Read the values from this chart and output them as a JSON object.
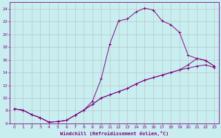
{
  "xlabel": "Windchill (Refroidissement éolien,°C)",
  "bg_color": "#c8eef0",
  "line_color": "#800080",
  "grid_color": "#b0b0b0",
  "xlim": [
    -0.5,
    23.5
  ],
  "ylim": [
    6,
    25
  ],
  "xticks": [
    0,
    1,
    2,
    3,
    4,
    5,
    6,
    7,
    8,
    9,
    10,
    11,
    12,
    13,
    14,
    15,
    16,
    17,
    18,
    19,
    20,
    21,
    22,
    23
  ],
  "yticks": [
    6,
    8,
    10,
    12,
    14,
    16,
    18,
    20,
    22,
    24
  ],
  "line1_x": [
    0,
    1,
    2,
    3,
    4,
    5,
    6,
    7,
    8,
    9,
    10,
    11,
    12,
    13,
    14,
    15,
    16,
    17,
    18,
    19,
    20,
    21,
    22,
    23
  ],
  "line1_y": [
    8.3,
    8.1,
    7.4,
    6.9,
    6.2,
    6.3,
    6.5,
    7.3,
    8.1,
    9.5,
    13.0,
    18.5,
    22.1,
    22.4,
    23.5,
    24.1,
    23.8,
    22.1,
    21.5,
    20.3,
    16.7,
    16.2,
    15.9,
    15.0
  ],
  "line2_x": [
    0,
    1,
    2,
    3,
    4,
    5,
    6,
    7,
    8,
    9,
    10,
    11,
    12,
    13,
    14,
    15,
    16,
    17,
    18,
    19,
    20,
    21,
    22,
    23
  ],
  "line2_y": [
    8.3,
    8.1,
    7.4,
    6.9,
    6.2,
    6.3,
    6.5,
    7.3,
    8.1,
    9.0,
    10.0,
    10.5,
    11.0,
    11.5,
    12.2,
    12.8,
    13.2,
    13.6,
    14.0,
    14.4,
    14.7,
    15.0,
    15.2,
    14.8
  ],
  "line3_x": [
    0,
    1,
    2,
    3,
    4,
    5,
    6,
    7,
    8,
    9,
    10,
    11,
    12,
    13,
    14,
    15,
    16,
    17,
    18,
    19,
    20,
    21,
    22,
    23
  ],
  "line3_y": [
    8.3,
    8.1,
    7.4,
    6.9,
    6.2,
    6.3,
    6.5,
    7.3,
    8.1,
    9.0,
    10.0,
    10.5,
    11.0,
    11.5,
    12.2,
    12.8,
    13.2,
    13.6,
    14.0,
    14.4,
    15.2,
    16.2,
    15.9,
    15.0
  ]
}
